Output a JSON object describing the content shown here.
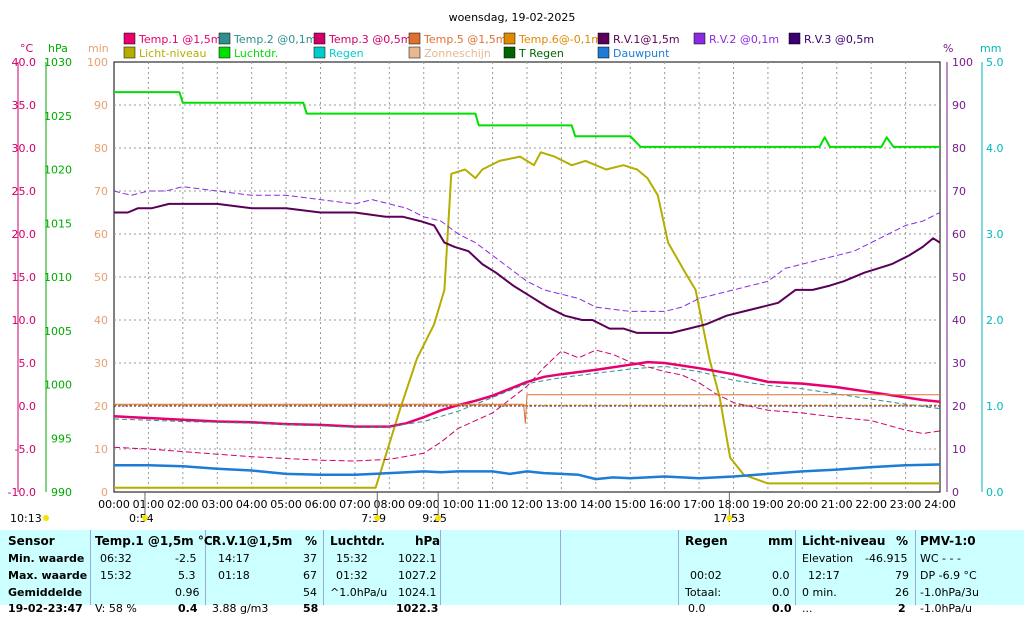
{
  "title": "woensdag, 19-02-2025",
  "colors": {
    "temp1": "#e8006e",
    "temp2": "#2f8f8f",
    "temp3": "#d0006a",
    "temp5": "#e07030",
    "temp6": "#e08a00",
    "rv1": "#5a0058",
    "rv2": "#8a2be2",
    "rv3": "#3a0070",
    "licht": "#b5ae00",
    "luchtdruk": "#00e000",
    "regen": "#00cccc",
    "zon": "#e8b890",
    "tregen": "#006400",
    "dauw": "#1e7bd6",
    "grid": "#999999",
    "left_celsius": "#d0006a",
    "left_hpa": "#00aa00",
    "left_min": "#e8a070",
    "right_pct": "#7a1a8a",
    "right_mm": "#00b8b8"
  },
  "legend": [
    {
      "label": "Temp.1 @1,5m",
      "color": "#e8006e"
    },
    {
      "label": "Temp.2 @0,1m",
      "color": "#2f8f8f"
    },
    {
      "label": "Temp.3 @0,5m",
      "color": "#d0006a"
    },
    {
      "label": "Temp.5 @1,5m",
      "color": "#e07030"
    },
    {
      "label": "Temp.6@-0,1m",
      "color": "#e08a00"
    },
    {
      "label": "R.V.1@1,5m",
      "color": "#5a0058"
    },
    {
      "label": "R.V.2 @0,1m",
      "color": "#8a2be2"
    },
    {
      "label": "R.V.3 @0,5m",
      "color": "#3a0070"
    },
    {
      "label": "Licht-niveau",
      "color": "#b5ae00"
    },
    {
      "label": "Luchtdr.",
      "color": "#00e000"
    },
    {
      "label": "Regen",
      "color": "#00cccc"
    },
    {
      "label": "Zonneschijn",
      "color": "#e8b890"
    },
    {
      "label": "T Regen",
      "color": "#006400"
    },
    {
      "label": "Dauwpunt",
      "color": "#1e7bd6"
    }
  ],
  "chart_data": {
    "type": "line",
    "title": "woensdag, 19-02-2025",
    "grid": true,
    "x_range": [
      0,
      24
    ],
    "x_ticks": [
      "00:00",
      "01:00",
      "02:00",
      "03:00",
      "04:00",
      "05:00",
      "06:00",
      "07:00",
      "08:00",
      "09:00",
      "10:00",
      "11:00",
      "12:00",
      "13:00",
      "14:00",
      "15:00",
      "16:00",
      "17:00",
      "18:00",
      "19:00",
      "20:00",
      "21:00",
      "22:00",
      "23:00",
      "24:00"
    ],
    "axes": {
      "celsius": {
        "unit": "°C",
        "range": [
          -10,
          40
        ],
        "ticks": [
          "40.0",
          "35.0",
          "30.0",
          "25.0",
          "20.0",
          "15.0",
          "10.0",
          "5.0",
          "0.0",
          "-5.0",
          "-10.0"
        ]
      },
      "hpa": {
        "unit": "hPa",
        "range": [
          990,
          1030
        ],
        "ticks": [
          "1030",
          "1025",
          "1020",
          "1015",
          "1010",
          "1005",
          "1000",
          "995",
          "990"
        ]
      },
      "min": {
        "unit": "min",
        "range": [
          0,
          100
        ],
        "ticks": [
          "100",
          "90",
          "80",
          "70",
          "60",
          "50",
          "40",
          "30",
          "20",
          "10",
          "0"
        ]
      },
      "pct": {
        "unit": "%",
        "range": [
          0,
          100
        ],
        "ticks": [
          "100",
          "90",
          "80",
          "70",
          "60",
          "50",
          "40",
          "30",
          "20",
          "10",
          "0"
        ]
      },
      "mm": {
        "unit": "mm",
        "range": [
          0,
          5
        ],
        "ticks": [
          "5.0",
          "4.0",
          "3.0",
          "2.0",
          "1.0",
          "0.0"
        ]
      }
    },
    "sun_markers": [
      {
        "label": "10:13",
        "x": 0
      },
      {
        "label": "0:54",
        "x": 0.9
      },
      {
        "label": "7:39",
        "x": 7.65
      },
      {
        "label": "9:25",
        "x": 9.42
      },
      {
        "label": "17:53",
        "x": 17.88
      }
    ],
    "series": [
      {
        "name": "Luchtdr.",
        "axis": "hpa",
        "color": "#00e000",
        "width": 2,
        "x": [
          0,
          1.9,
          2.0,
          5.5,
          5.6,
          10.5,
          10.6,
          13.3,
          13.4,
          15.0,
          15.3,
          16.0,
          20.5,
          20.65,
          20.8,
          22.3,
          22.45,
          22.65,
          24
        ],
        "y": [
          1027.2,
          1027.2,
          1026.2,
          1026.2,
          1025.2,
          1025.2,
          1024.1,
          1024.1,
          1023.1,
          1023.1,
          1022.1,
          1022.1,
          1022.1,
          1023.0,
          1022.1,
          1022.1,
          1023.0,
          1022.1,
          1022.1
        ]
      },
      {
        "name": "Licht-niveau",
        "axis": "min",
        "color": "#b5ae00",
        "width": 2,
        "x": [
          0,
          7.6,
          7.8,
          8.3,
          8.8,
          9.3,
          9.6,
          9.8,
          10.2,
          10.5,
          10.7,
          11.2,
          11.8,
          12.2,
          12.4,
          12.8,
          13.3,
          13.7,
          14.0,
          14.3,
          14.8,
          15.2,
          15.5,
          15.8,
          16.1,
          16.6,
          16.9,
          17.3,
          17.6,
          17.9,
          18.3,
          19,
          24
        ],
        "y": [
          1,
          1,
          6,
          19,
          31,
          39,
          47,
          74,
          75,
          73,
          75,
          77,
          78,
          76,
          79,
          78,
          76,
          77,
          76,
          75,
          76,
          75,
          73,
          69,
          58,
          51,
          47,
          31,
          22,
          8,
          4,
          2,
          2
        ]
      },
      {
        "name": "R.V.1@1,5m",
        "axis": "pct",
        "color": "#5a0058",
        "width": 2,
        "x": [
          0,
          0.4,
          0.7,
          1.1,
          1.6,
          2.2,
          3.0,
          4.0,
          5.0,
          6.0,
          7.0,
          7.9,
          8.4,
          8.9,
          9.3,
          9.6,
          9.9,
          10.3,
          10.7,
          11.1,
          11.6,
          12.0,
          12.6,
          13.1,
          13.6,
          13.9,
          14.4,
          14.8,
          15.2,
          15.6,
          16.2,
          16.7,
          17.2,
          17.8,
          18.3,
          18.8,
          19.3,
          19.8,
          20.3,
          20.8,
          21.2,
          21.8,
          22.2,
          22.6,
          23.1,
          23.5,
          23.8,
          24
        ],
        "y": [
          65,
          65,
          66,
          66,
          67,
          67,
          67,
          66,
          66,
          65,
          65,
          64,
          64,
          63,
          62,
          58,
          57,
          56,
          53,
          51,
          48,
          46,
          43,
          41,
          40,
          40,
          38,
          38,
          37,
          37,
          37,
          38,
          39,
          41,
          42,
          43,
          44,
          47,
          47,
          48,
          49,
          51,
          52,
          53,
          55,
          57,
          59,
          58
        ]
      },
      {
        "name": "R.V.2 @0,1m",
        "axis": "pct",
        "color": "#8a2be2",
        "width": 1,
        "dash": "6,3",
        "x": [
          0,
          0.5,
          1.0,
          1.5,
          2.0,
          3.0,
          4.0,
          5.0,
          6.0,
          7.0,
          7.5,
          8.0,
          8.5,
          9.0,
          9.5,
          10.0,
          10.5,
          11.0,
          11.5,
          12.0,
          12.5,
          13.0,
          13.5,
          14.0,
          15.0,
          16.0,
          16.5,
          17.0,
          17.5,
          18.0,
          18.5,
          19.0,
          19.5,
          20.0,
          20.5,
          21.0,
          21.5,
          22.0,
          22.5,
          23.0,
          23.5,
          24
        ],
        "y": [
          70,
          69,
          70,
          70,
          71,
          70,
          69,
          69,
          68,
          67,
          68,
          67,
          66,
          64,
          63,
          60,
          58,
          55,
          52,
          49,
          47,
          46,
          45,
          43,
          42,
          42,
          43,
          45,
          46,
          47,
          48,
          49,
          52,
          53,
          54,
          55,
          56,
          58,
          60,
          62,
          63,
          65
        ]
      },
      {
        "name": "R.V.3 @0,5m",
        "axis": "pct",
        "color": "#3a0070",
        "width": 1,
        "dash": "2,2",
        "x": [
          0,
          4,
          6,
          8,
          10,
          12,
          14,
          16,
          18,
          20,
          22,
          24
        ],
        "y": [
          20,
          20,
          20,
          20,
          20,
          20,
          20,
          20,
          20,
          20,
          20,
          20
        ]
      },
      {
        "name": "Temp.1 @1,5m",
        "axis": "celsius",
        "color": "#e8006e",
        "width": 2.5,
        "x": [
          0,
          1,
          2,
          3,
          4,
          5,
          6,
          7,
          8,
          8.5,
          9,
          9.5,
          10,
          10.5,
          11,
          11.5,
          12,
          12.5,
          13,
          14,
          15,
          15.5,
          16,
          17,
          18,
          19,
          20,
          21,
          22,
          23,
          23.5,
          24
        ],
        "y": [
          -1.2,
          -1.4,
          -1.6,
          -1.8,
          -1.9,
          -2.1,
          -2.2,
          -2.4,
          -2.4,
          -2.0,
          -1.3,
          -0.5,
          0.1,
          0.6,
          1.2,
          2.0,
          2.8,
          3.4,
          3.7,
          4.2,
          4.8,
          5.1,
          5.0,
          4.4,
          3.7,
          2.8,
          2.6,
          2.2,
          1.6,
          1.0,
          0.7,
          0.5
        ]
      },
      {
        "name": "Temp.2 @0,1m",
        "axis": "celsius",
        "color": "#2f8f8f",
        "width": 1,
        "dash": "5,3",
        "x": [
          0,
          2,
          4,
          6,
          7,
          8,
          9,
          10,
          11,
          12,
          13,
          14,
          15,
          16,
          17,
          18,
          19,
          20,
          21,
          22,
          23,
          24
        ],
        "y": [
          -1.5,
          -1.8,
          -2.0,
          -2.3,
          -2.5,
          -2.4,
          -1.8,
          -0.6,
          1.0,
          2.6,
          3.3,
          3.8,
          4.3,
          4.6,
          4.0,
          3.0,
          2.4,
          2.0,
          1.4,
          0.8,
          0.2,
          -0.3
        ]
      },
      {
        "name": "Temp.3 @0,5m",
        "axis": "celsius",
        "color": "#d0006a",
        "width": 1,
        "dash": "6,3",
        "x": [
          0,
          1,
          2,
          3,
          4,
          5,
          6,
          7,
          8,
          9,
          9.5,
          10,
          11,
          12,
          12.5,
          13,
          13.5,
          14,
          14.5,
          15,
          16,
          16.5,
          17,
          17.5,
          18,
          19,
          20,
          21,
          22,
          23,
          23.5,
          24
        ],
        "y": [
          -4.8,
          -5.0,
          -5.3,
          -5.6,
          -5.9,
          -6.1,
          -6.3,
          -6.4,
          -6.2,
          -5.5,
          -4.2,
          -2.6,
          -0.8,
          2.3,
          4.5,
          6.4,
          5.6,
          6.5,
          6.0,
          5.1,
          4.0,
          3.6,
          2.7,
          1.4,
          0.4,
          -0.5,
          -0.8,
          -1.3,
          -1.7,
          -2.8,
          -3.2,
          -2.9
        ]
      },
      {
        "name": "Temp.5 @1,5m",
        "axis": "celsius",
        "color": "#e07030",
        "width": 1,
        "x": [
          0,
          11.9,
          11.95,
          12.0,
          24
        ],
        "y": [
          0.2,
          0.2,
          -2.0,
          1.3,
          1.3
        ]
      },
      {
        "name": "Temp.6@-0,1m",
        "axis": "celsius",
        "color": "#e08a00",
        "width": 1,
        "dash": "3,2",
        "x": [
          0,
          24
        ],
        "y": [
          0.1,
          0.1
        ]
      },
      {
        "name": "Dauwpunt",
        "axis": "celsius",
        "color": "#1e7bd6",
        "width": 2.5,
        "x": [
          0,
          1,
          2,
          3,
          4,
          5,
          6,
          7,
          8,
          9,
          9.5,
          10,
          11,
          11.5,
          12,
          12.5,
          13,
          13.5,
          14,
          14.5,
          15,
          16,
          17,
          18,
          19,
          20,
          21,
          22,
          23,
          24
        ],
        "y": [
          -6.9,
          -6.9,
          -7.0,
          -7.3,
          -7.5,
          -7.9,
          -8.0,
          -8.0,
          -7.8,
          -7.6,
          -7.7,
          -7.6,
          -7.6,
          -7.9,
          -7.6,
          -7.8,
          -7.9,
          -8.0,
          -8.5,
          -8.3,
          -8.4,
          -8.2,
          -8.4,
          -8.2,
          -7.9,
          -7.6,
          -7.4,
          -7.1,
          -6.9,
          -6.8
        ]
      }
    ]
  },
  "footer": {
    "sensor": {
      "header": "Sensor",
      "rows": [
        "Min. waarde",
        "Max. waarde",
        "Gemiddelde",
        "19-02-23:47"
      ]
    },
    "temp1": {
      "header": "Temp.1 @1,5m  °C",
      "times": [
        "06:32",
        "15:32",
        ""
      ],
      "values": [
        "-2.5",
        "5.3",
        "0.96"
      ],
      "last": "V: 58 %",
      "last_value": "0.4"
    },
    "rv1": {
      "header": "R.V.1@1,5m",
      "unit": "%",
      "times": [
        "14:17",
        "01:18",
        ""
      ],
      "values": [
        "37",
        "67",
        "54"
      ],
      "last": "3.88 g/m3",
      "last_value": "58"
    },
    "luchtdr": {
      "header": "Luchtdr.",
      "unit": "hPa",
      "times": [
        "15:32",
        "01:32",
        "^1.0hPa/u"
      ],
      "values": [
        "1022.1",
        "1027.2",
        "1024.1"
      ],
      "last_value": "1022.3"
    },
    "regen": {
      "header": "Regen",
      "unit": "mm",
      "rows": [
        "",
        "00:02",
        "Totaal:",
        "0.0"
      ],
      "values": [
        "",
        "0.0",
        "0.0",
        "0.0"
      ]
    },
    "licht": {
      "header": "Licht-niveau",
      "unit": "%",
      "rows": [
        "Elevation",
        "12:17",
        "0 min.",
        "..."
      ],
      "values": [
        "-46.915",
        "79",
        "26",
        "2"
      ]
    },
    "pmv": {
      "header": "PMV-1:0",
      "rows": [
        "WC - - -",
        "DP -6.9 °C",
        "-1.0hPa/3u",
        "-1.0hPa/u"
      ]
    }
  }
}
